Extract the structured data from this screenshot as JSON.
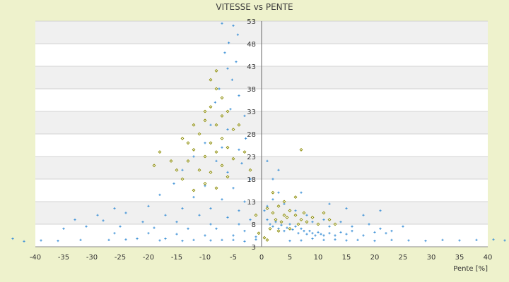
{
  "chart_data": {
    "type": "scatter",
    "title": "VITESSE vs PENTE",
    "xlabel": "Pente [%]",
    "ylabel": "",
    "xlim": [
      -40,
      40
    ],
    "ylim": [
      3,
      53
    ],
    "x_ticks": [
      -40,
      -35,
      -30,
      -25,
      -20,
      -15,
      -10,
      -5,
      0,
      5,
      10,
      15,
      20,
      25,
      30,
      35,
      40
    ],
    "y_ticks": [
      3,
      8,
      13,
      18,
      23,
      28,
      33,
      38,
      43,
      48,
      53
    ],
    "grid": true,
    "legend": "none",
    "series": [
      {
        "color": "#3a8fd6",
        "marker": "plus",
        "values": [
          [
            -7,
            52.5
          ],
          [
            -5,
            52
          ],
          [
            -4.2,
            50
          ],
          [
            -5.8,
            48.2
          ],
          [
            -6.5,
            46
          ],
          [
            -4.5,
            44
          ],
          [
            -6,
            42.5
          ],
          [
            -5.2,
            40
          ],
          [
            -7.5,
            38
          ],
          [
            -4,
            36.5
          ],
          [
            -8.2,
            35
          ],
          [
            -5.5,
            33.5
          ],
          [
            -3,
            32
          ],
          [
            -9,
            30
          ],
          [
            -6,
            29
          ],
          [
            -2.8,
            27
          ],
          [
            -10,
            26
          ],
          [
            -7,
            25
          ],
          [
            -4,
            24.5
          ],
          [
            -12,
            23
          ],
          [
            -8,
            22
          ],
          [
            -3.5,
            21.5
          ],
          [
            -14,
            20
          ],
          [
            -6,
            19.5
          ],
          [
            -2,
            18
          ],
          [
            -15.5,
            17
          ],
          [
            -10,
            16.5
          ],
          [
            -5,
            16
          ],
          [
            -18,
            14.5
          ],
          [
            -12,
            14
          ],
          [
            -7,
            13.5
          ],
          [
            -3,
            13
          ],
          [
            -20,
            12
          ],
          [
            -14,
            11.5
          ],
          [
            -9,
            11.5
          ],
          [
            -4,
            11
          ],
          [
            -24,
            10.5
          ],
          [
            -17,
            10
          ],
          [
            -11,
            10
          ],
          [
            -6,
            9.5
          ],
          [
            -2,
            9
          ],
          [
            -28,
            8.8
          ],
          [
            -21,
            8.5
          ],
          [
            -15,
            8.5
          ],
          [
            -9,
            8
          ],
          [
            -4,
            8
          ],
          [
            -31,
            7.5
          ],
          [
            -25,
            7.5
          ],
          [
            -19,
            7.2
          ],
          [
            -13,
            7
          ],
          [
            -8,
            7
          ],
          [
            -3,
            6.5
          ],
          [
            -26,
            6
          ],
          [
            -20,
            6
          ],
          [
            -15,
            5.8
          ],
          [
            -10,
            5.5
          ],
          [
            -5,
            5.5
          ],
          [
            -1,
            5.2
          ],
          [
            -22,
            4.8
          ],
          [
            -17,
            4.8
          ],
          [
            -12,
            4.5
          ],
          [
            -7,
            4.5
          ],
          [
            -3,
            4.2
          ],
          [
            -44,
            4.8
          ],
          [
            -42,
            4.2
          ],
          [
            -36,
            4.3
          ],
          [
            -39,
            4.4
          ],
          [
            -32,
            4.5
          ],
          [
            -27,
            4.5
          ],
          [
            -24,
            4.6
          ],
          [
            -18,
            4.4
          ],
          [
            -14,
            4.3
          ],
          [
            -9,
            4.4
          ],
          [
            -5,
            4.5
          ],
          [
            -1,
            4.6
          ],
          [
            -33,
            9
          ],
          [
            -29,
            10
          ],
          [
            -26,
            11.5
          ],
          [
            -35,
            7
          ],
          [
            0.5,
            11
          ],
          [
            1,
            9
          ],
          [
            1.5,
            8
          ],
          [
            2,
            7.5
          ],
          [
            2.5,
            8.5
          ],
          [
            3,
            7
          ],
          [
            3.5,
            7.8
          ],
          [
            4,
            6.5
          ],
          [
            4.5,
            7.2
          ],
          [
            5,
            8
          ],
          [
            5.5,
            6.8
          ],
          [
            6,
            7.5
          ],
          [
            6.5,
            6
          ],
          [
            7,
            7
          ],
          [
            7.5,
            6.5
          ],
          [
            8,
            5.8
          ],
          [
            8.5,
            6.5
          ],
          [
            9,
            6
          ],
          [
            9.5,
            5.5
          ],
          [
            10,
            6.2
          ],
          [
            10.5,
            5.8
          ],
          [
            11,
            5.5
          ],
          [
            12,
            6
          ],
          [
            13,
            5.5
          ],
          [
            14,
            6.2
          ],
          [
            15,
            5.8
          ],
          [
            16,
            6.5
          ],
          [
            18,
            5.5
          ],
          [
            20,
            6.2
          ],
          [
            22,
            6
          ],
          [
            1,
            12
          ],
          [
            2,
            13.5
          ],
          [
            3,
            15
          ],
          [
            4,
            12.5
          ],
          [
            6,
            11
          ],
          [
            8,
            10
          ],
          [
            9,
            8.5
          ],
          [
            11,
            9
          ],
          [
            12,
            7.5
          ],
          [
            14,
            8.5
          ],
          [
            16,
            7.5
          ],
          [
            19,
            8
          ],
          [
            21,
            7
          ],
          [
            23,
            6.5
          ],
          [
            25,
            7.5
          ],
          [
            18,
            10
          ],
          [
            21,
            11
          ],
          [
            15,
            11.5
          ],
          [
            12,
            12.5
          ],
          [
            7,
            15
          ],
          [
            2,
            18
          ],
          [
            3,
            20
          ],
          [
            1,
            22
          ],
          [
            9,
            4.8
          ],
          [
            11,
            4.5
          ],
          [
            13,
            4.6
          ],
          [
            15,
            4.4
          ],
          [
            17,
            4.5
          ],
          [
            20,
            4.3
          ],
          [
            23,
            4.5
          ],
          [
            26,
            4.4
          ],
          [
            29,
            4.3
          ],
          [
            32,
            4.5
          ],
          [
            35,
            4.4
          ],
          [
            38,
            4.5
          ],
          [
            41,
            4.6
          ],
          [
            43,
            4.4
          ],
          [
            44,
            4.8
          ],
          [
            5,
            4.3
          ],
          [
            7,
            4.4
          ]
        ]
      },
      {
        "color": "#8a8a00",
        "marker": "diamond",
        "values": [
          [
            -8,
            38
          ],
          [
            -7,
            36
          ],
          [
            -9,
            34
          ],
          [
            -6,
            33
          ],
          [
            -10,
            31
          ],
          [
            -8,
            30
          ],
          [
            -5,
            29
          ],
          [
            -11,
            28
          ],
          [
            -7,
            27
          ],
          [
            -9,
            26
          ],
          [
            -6,
            25
          ],
          [
            -12,
            24.5
          ],
          [
            -8,
            24
          ],
          [
            -10,
            23
          ],
          [
            -5,
            22.5
          ],
          [
            -13,
            22
          ],
          [
            -7,
            21
          ],
          [
            -11,
            20
          ],
          [
            -9,
            19.5
          ],
          [
            -6,
            18.5
          ],
          [
            -14,
            18
          ],
          [
            -10,
            17
          ],
          [
            -8,
            16
          ],
          [
            -12,
            15.5
          ],
          [
            -15,
            20
          ],
          [
            -16,
            22
          ],
          [
            -18,
            24
          ],
          [
            -19,
            21
          ],
          [
            -13,
            26
          ],
          [
            -10,
            33
          ],
          [
            -4,
            30
          ],
          [
            -3,
            24
          ],
          [
            -2,
            20
          ],
          [
            -12,
            30
          ],
          [
            -14,
            27
          ],
          [
            -7,
            32
          ],
          [
            -8,
            42
          ],
          [
            -9,
            40
          ],
          [
            1,
            11.5
          ],
          [
            2,
            10.5
          ],
          [
            3,
            12
          ],
          [
            4,
            10
          ],
          [
            5,
            11
          ],
          [
            2.5,
            9
          ],
          [
            3.5,
            8.5
          ],
          [
            4.5,
            9.5
          ],
          [
            6,
            10
          ],
          [
            7,
            9
          ],
          [
            8,
            8.5
          ],
          [
            9,
            9.5
          ],
          [
            10,
            8
          ],
          [
            1.5,
            7
          ],
          [
            3,
            6.5
          ],
          [
            5,
            7
          ],
          [
            6.5,
            8
          ],
          [
            7.5,
            10.5
          ],
          [
            4,
            13
          ],
          [
            6,
            14
          ],
          [
            2,
            15
          ],
          [
            7,
            24.5
          ],
          [
            11,
            10.5
          ],
          [
            12,
            9
          ],
          [
            13,
            8
          ],
          [
            0.5,
            5
          ],
          [
            1,
            4.5
          ],
          [
            -0.5,
            6
          ],
          [
            -1,
            10
          ]
        ]
      }
    ]
  }
}
